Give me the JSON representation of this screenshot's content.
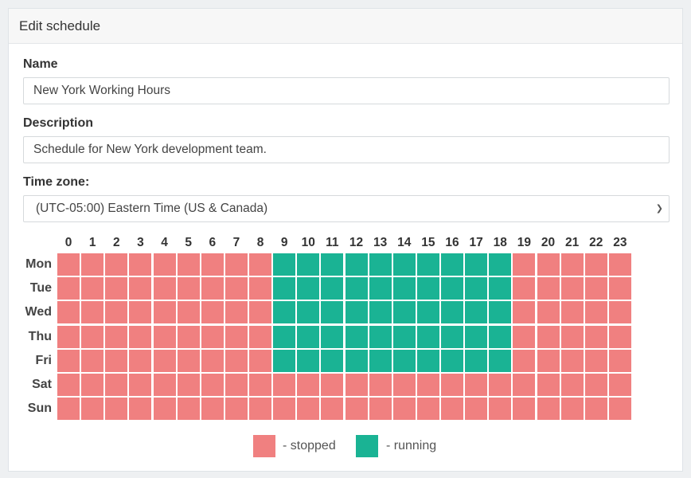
{
  "header": {
    "title": "Edit schedule"
  },
  "form": {
    "name_label": "Name",
    "name_value": "New York Working Hours",
    "description_label": "Description",
    "description_value": "Schedule for New York development team.",
    "timezone_label": "Time zone:",
    "timezone_value": "(UTC-05:00) Eastern Time (US & Canada)"
  },
  "schedule": {
    "hours": [
      "0",
      "1",
      "2",
      "3",
      "4",
      "5",
      "6",
      "7",
      "8",
      "9",
      "10",
      "11",
      "12",
      "13",
      "14",
      "15",
      "16",
      "17",
      "18",
      "19",
      "20",
      "21",
      "22",
      "23"
    ],
    "days": [
      "Mon",
      "Tue",
      "Wed",
      "Thu",
      "Fri",
      "Sat",
      "Sun"
    ],
    "running": [
      [
        0,
        0,
        0,
        0,
        0,
        0,
        0,
        0,
        0,
        1,
        1,
        1,
        1,
        1,
        1,
        1,
        1,
        1,
        1,
        0,
        0,
        0,
        0,
        0
      ],
      [
        0,
        0,
        0,
        0,
        0,
        0,
        0,
        0,
        0,
        1,
        1,
        1,
        1,
        1,
        1,
        1,
        1,
        1,
        1,
        0,
        0,
        0,
        0,
        0
      ],
      [
        0,
        0,
        0,
        0,
        0,
        0,
        0,
        0,
        0,
        1,
        1,
        1,
        1,
        1,
        1,
        1,
        1,
        1,
        1,
        0,
        0,
        0,
        0,
        0
      ],
      [
        0,
        0,
        0,
        0,
        0,
        0,
        0,
        0,
        0,
        1,
        1,
        1,
        1,
        1,
        1,
        1,
        1,
        1,
        1,
        0,
        0,
        0,
        0,
        0
      ],
      [
        0,
        0,
        0,
        0,
        0,
        0,
        0,
        0,
        0,
        1,
        1,
        1,
        1,
        1,
        1,
        1,
        1,
        1,
        1,
        0,
        0,
        0,
        0,
        0
      ],
      [
        0,
        0,
        0,
        0,
        0,
        0,
        0,
        0,
        0,
        0,
        0,
        0,
        0,
        0,
        0,
        0,
        0,
        0,
        0,
        0,
        0,
        0,
        0,
        0
      ],
      [
        0,
        0,
        0,
        0,
        0,
        0,
        0,
        0,
        0,
        0,
        0,
        0,
        0,
        0,
        0,
        0,
        0,
        0,
        0,
        0,
        0,
        0,
        0,
        0
      ]
    ]
  },
  "legend": {
    "stopped_label": "- stopped",
    "running_label": "- running"
  },
  "colors": {
    "stopped": "#f08080",
    "running": "#1ab394"
  },
  "icons": {
    "select_chevron": "chevron-down-icon"
  }
}
